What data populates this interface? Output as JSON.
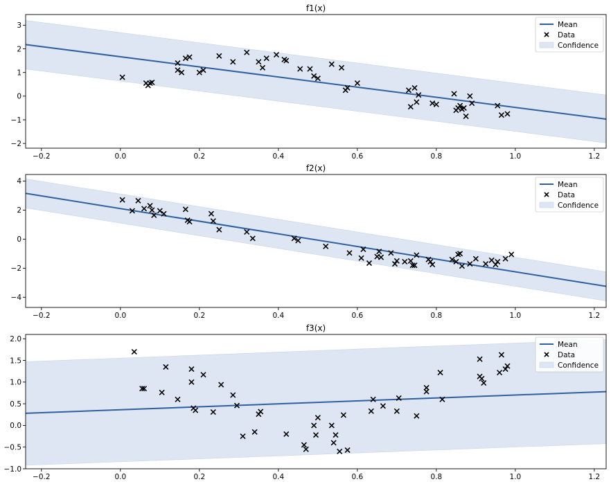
{
  "figure": {
    "colors": {
      "mean_line": "#2e5f9e",
      "confidence_fill": "#dde6f2",
      "data_marker": "#000000",
      "axes_frame": "#000000"
    }
  },
  "chart_data": [
    {
      "type": "line",
      "title": "f1(x)",
      "xlim": [
        -0.24,
        1.23
      ],
      "ylim": [
        -2.2,
        3.45
      ],
      "xticks": [
        -0.2,
        0.0,
        0.2,
        0.4,
        0.6,
        0.8,
        1.0,
        1.2
      ],
      "xticklabels": [
        "−0.2",
        "0.0",
        "0.2",
        "0.4",
        "0.6",
        "0.8",
        "1.0",
        "1.2"
      ],
      "yticks": [
        -2,
        -1,
        0,
        1,
        2,
        3
      ],
      "yticklabels": [
        "−2",
        "−1",
        "0",
        "1",
        "2",
        "3"
      ],
      "grid": false,
      "legend": {
        "placement": "upper right",
        "entries": [
          "Mean",
          "Data",
          "Confidence"
        ]
      },
      "mean": {
        "x": [
          -0.24,
          1.23
        ],
        "y": [
          2.18,
          -0.97
        ]
      },
      "confidence": {
        "x": [
          -0.24,
          1.23
        ],
        "upper": [
          3.2,
          0.05
        ],
        "lower": [
          1.15,
          -1.98
        ]
      },
      "data": {
        "x": [
          0.005,
          0.065,
          0.07,
          0.075,
          0.08,
          0.145,
          0.145,
          0.155,
          0.165,
          0.175,
          0.2,
          0.21,
          0.25,
          0.285,
          0.32,
          0.35,
          0.36,
          0.37,
          0.395,
          0.415,
          0.42,
          0.455,
          0.48,
          0.49,
          0.5,
          0.535,
          0.56,
          0.57,
          0.575,
          0.6,
          0.73,
          0.735,
          0.745,
          0.75,
          0.755,
          0.79,
          0.8,
          0.845,
          0.85,
          0.855,
          0.86,
          0.865,
          0.87,
          0.875,
          0.885,
          0.89,
          0.955,
          0.965,
          0.98
        ],
        "y": [
          0.8,
          0.55,
          0.45,
          0.55,
          0.58,
          1.4,
          1.1,
          1.0,
          1.6,
          1.65,
          1.0,
          1.1,
          1.7,
          1.45,
          1.85,
          1.45,
          1.2,
          1.6,
          1.75,
          1.55,
          1.5,
          1.15,
          1.15,
          0.85,
          0.75,
          1.35,
          1.2,
          0.25,
          0.35,
          0.55,
          0.25,
          -0.45,
          0.35,
          -0.25,
          0.05,
          -0.3,
          -0.35,
          0.1,
          -0.6,
          -0.5,
          -0.4,
          -0.55,
          -0.5,
          -0.85,
          0.0,
          -0.3,
          -0.4,
          -0.8,
          -0.75
        ]
      }
    },
    {
      "type": "line",
      "title": "f2(x)",
      "xlim": [
        -0.24,
        1.23
      ],
      "ylim": [
        -4.7,
        4.45
      ],
      "xticks": [
        -0.2,
        0.0,
        0.2,
        0.4,
        0.6,
        0.8,
        1.0,
        1.2
      ],
      "xticklabels": [
        "−0.2",
        "0.0",
        "0.2",
        "0.4",
        "0.6",
        "0.8",
        "1.0",
        "1.2"
      ],
      "yticks": [
        -4,
        -2,
        0,
        2,
        4
      ],
      "yticklabels": [
        "−4",
        "−2",
        "0",
        "2",
        "4"
      ],
      "grid": false,
      "legend": {
        "placement": "upper right",
        "entries": [
          "Mean",
          "Data",
          "Confidence"
        ]
      },
      "mean": {
        "x": [
          -0.24,
          1.23
        ],
        "y": [
          3.15,
          -3.25
        ]
      },
      "confidence": {
        "x": [
          -0.24,
          1.23
        ],
        "upper": [
          4.15,
          -2.25
        ],
        "lower": [
          2.15,
          -4.25
        ]
      },
      "data": {
        "x": [
          0.005,
          0.03,
          0.045,
          0.06,
          0.075,
          0.08,
          0.085,
          0.1,
          0.11,
          0.165,
          0.17,
          0.175,
          0.23,
          0.235,
          0.25,
          0.32,
          0.335,
          0.44,
          0.45,
          0.52,
          0.58,
          0.61,
          0.615,
          0.63,
          0.65,
          0.655,
          0.66,
          0.685,
          0.695,
          0.7,
          0.72,
          0.735,
          0.74,
          0.745,
          0.75,
          0.78,
          0.785,
          0.79,
          0.84,
          0.85,
          0.855,
          0.86,
          0.865,
          0.885,
          0.9,
          0.925,
          0.94,
          0.95,
          0.955,
          0.975,
          0.99
        ],
        "y": [
          2.7,
          1.95,
          2.65,
          2.1,
          2.3,
          2.0,
          1.65,
          1.95,
          1.75,
          2.05,
          1.3,
          1.2,
          1.75,
          1.25,
          0.65,
          0.5,
          0.05,
          0.05,
          -0.1,
          -0.5,
          -0.95,
          -1.3,
          -0.7,
          -1.65,
          -1.2,
          -0.85,
          -1.25,
          -0.95,
          -1.7,
          -1.5,
          -1.55,
          -1.5,
          -1.8,
          -1.8,
          -1.1,
          -1.4,
          -1.55,
          -1.75,
          -1.4,
          -1.55,
          -1.05,
          -1.0,
          -1.85,
          -1.7,
          -1.35,
          -1.7,
          -1.45,
          -1.75,
          -1.55,
          -1.35,
          -1.05
        ]
      }
    },
    {
      "type": "line",
      "title": "f3(x)",
      "xlim": [
        -0.24,
        1.23
      ],
      "ylim": [
        -1.0,
        2.1
      ],
      "xticks": [
        -0.2,
        0.0,
        0.2,
        0.4,
        0.6,
        0.8,
        1.0,
        1.2
      ],
      "xticklabels": [
        "−0.2",
        "0.0",
        "0.2",
        "0.4",
        "0.6",
        "0.8",
        "1.0",
        "1.2"
      ],
      "yticks": [
        -1.0,
        -0.5,
        0.0,
        0.5,
        1.0,
        1.5,
        2.0
      ],
      "yticklabels": [
        "−1.0",
        "−0.5",
        "0.0",
        "0.5",
        "1.0",
        "1.5",
        "2.0"
      ],
      "grid": false,
      "legend": {
        "placement": "upper right",
        "entries": [
          "Mean",
          "Data",
          "Confidence"
        ]
      },
      "mean": {
        "x": [
          -0.24,
          1.23
        ],
        "y": [
          0.28,
          0.78
        ]
      },
      "confidence": {
        "x": [
          -0.24,
          1.23
        ],
        "upper": [
          1.47,
          1.98
        ],
        "lower": [
          -0.92,
          -0.42
        ]
      },
      "data": {
        "x": [
          0.035,
          0.055,
          0.06,
          0.105,
          0.115,
          0.145,
          0.18,
          0.18,
          0.185,
          0.19,
          0.21,
          0.235,
          0.255,
          0.285,
          0.295,
          0.31,
          0.34,
          0.35,
          0.355,
          0.42,
          0.465,
          0.47,
          0.49,
          0.495,
          0.5,
          0.535,
          0.54,
          0.545,
          0.555,
          0.565,
          0.575,
          0.635,
          0.64,
          0.665,
          0.7,
          0.705,
          0.75,
          0.775,
          0.775,
          0.81,
          0.815,
          0.91,
          0.91,
          0.915,
          0.92,
          0.96,
          0.965,
          0.975,
          0.98
        ],
        "y": [
          1.7,
          0.85,
          0.85,
          0.76,
          1.35,
          0.6,
          1.0,
          1.3,
          0.4,
          0.35,
          1.17,
          0.31,
          0.94,
          0.7,
          0.46,
          -0.25,
          -0.15,
          0.26,
          0.32,
          -0.2,
          -0.45,
          -0.55,
          0.0,
          -0.22,
          0.18,
          0.0,
          -0.4,
          -0.22,
          -0.6,
          0.24,
          -0.57,
          0.33,
          0.6,
          0.45,
          0.33,
          0.63,
          0.22,
          0.78,
          0.87,
          1.22,
          0.6,
          1.53,
          1.13,
          1.08,
          0.98,
          1.22,
          1.63,
          1.3,
          1.37
        ]
      }
    }
  ]
}
